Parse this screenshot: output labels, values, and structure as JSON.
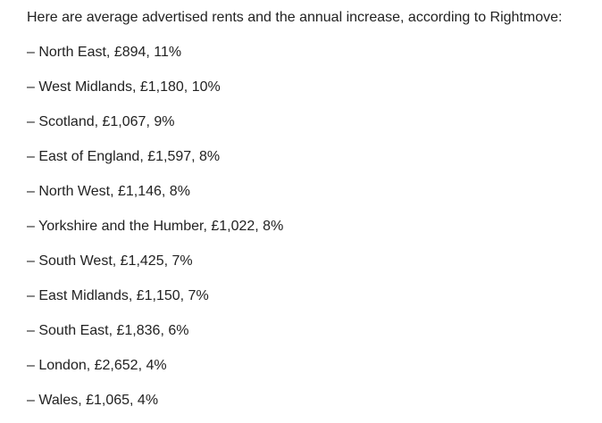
{
  "article": {
    "intro": "Here are average advertised rents and the annual increase, according to Rightmove:",
    "items": [
      "– North East, £894, 11%",
      "– West Midlands, £1,180, 10%",
      "– Scotland, £1,067, 9%",
      "– East of England, £1,597, 8%",
      "– North West, £1,146, 8%",
      "– Yorkshire and the Humber, £1,022, 8%",
      "– South West, £1,425, 7%",
      "– East Midlands, £1,150, 7%",
      "– South East, £1,836, 6%",
      "– London, £2,652, 4%",
      "– Wales, £1,065, 4%"
    ]
  }
}
